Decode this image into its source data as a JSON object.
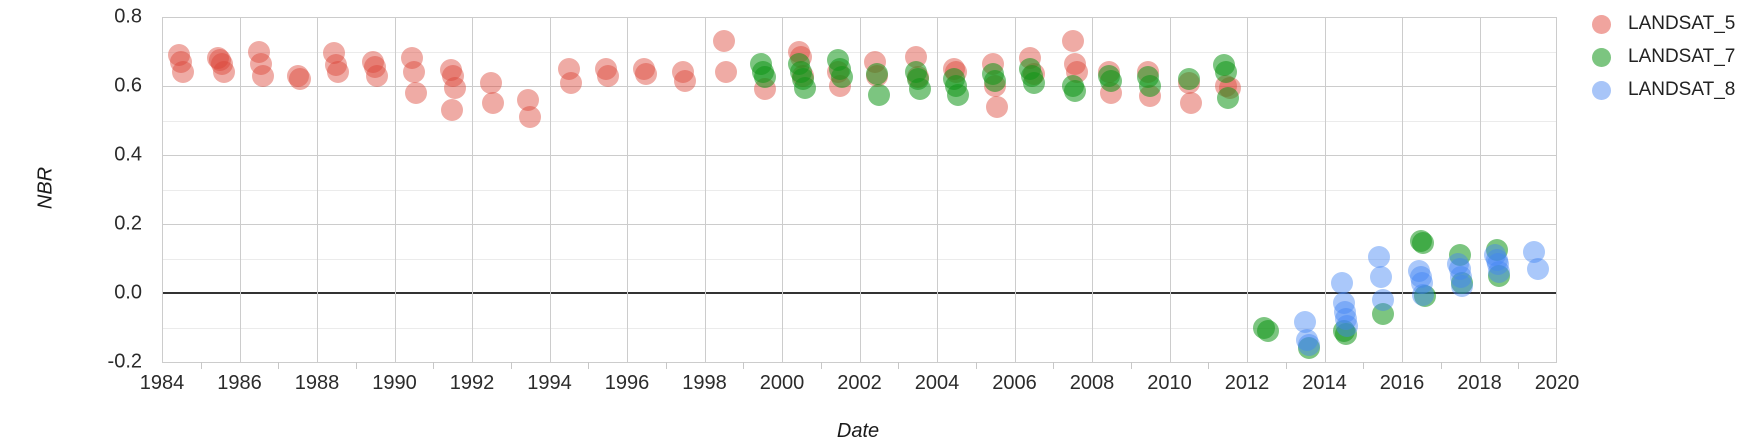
{
  "chart_data": {
    "type": "scatter",
    "title": "",
    "xlabel": "Date",
    "ylabel": "NBR",
    "x_range": [
      1984,
      2020
    ],
    "y_range": [
      -0.2,
      0.8
    ],
    "grid": true,
    "legend_position": "right",
    "x_ticks": [
      {
        "label": "1984",
        "value": 1984
      },
      {
        "label": "1986",
        "value": 1986
      },
      {
        "label": "1988",
        "value": 1988
      },
      {
        "label": "1990",
        "value": 1990
      },
      {
        "label": "1992",
        "value": 1992
      },
      {
        "label": "1994",
        "value": 1994
      },
      {
        "label": "1996",
        "value": 1996
      },
      {
        "label": "1998",
        "value": 1998
      },
      {
        "label": "2000",
        "value": 2000
      },
      {
        "label": "2002",
        "value": 2002
      },
      {
        "label": "2004",
        "value": 2004
      },
      {
        "label": "2006",
        "value": 2006
      },
      {
        "label": "2008",
        "value": 2008
      },
      {
        "label": "2010",
        "value": 2010
      },
      {
        "label": "2012",
        "value": 2012
      },
      {
        "label": "2014",
        "value": 2014
      },
      {
        "label": "2016",
        "value": 2016
      },
      {
        "label": "2018",
        "value": 2018
      },
      {
        "label": "2020",
        "value": 2020
      }
    ],
    "x_minor_ticks": [
      1985,
      1987,
      1989,
      1991,
      1993,
      1995,
      1997,
      1999,
      2001,
      2003,
      2005,
      2007,
      2009,
      2011,
      2013,
      2015,
      2017,
      2019
    ],
    "y_ticks": [
      {
        "label": "0.8",
        "value": 0.8
      },
      {
        "label": "0.6",
        "value": 0.6
      },
      {
        "label": "0.4",
        "value": 0.4
      },
      {
        "label": "0.2",
        "value": 0.2
      },
      {
        "label": "0.0",
        "value": 0.0
      },
      {
        "label": "-0.2",
        "value": -0.2
      }
    ],
    "y_minor_gridlines": [
      0.7,
      0.5,
      0.3,
      0.1,
      -0.1
    ],
    "zero_line_value": 0.0,
    "series": [
      {
        "name": "LANDSAT_5",
        "color": "rgba(219,68,55,0.45)",
        "legend_color": "#f0a49e",
        "points": [
          [
            1984.45,
            0.69
          ],
          [
            1984.5,
            0.67
          ],
          [
            1984.55,
            0.64
          ],
          [
            1985.45,
            0.68
          ],
          [
            1985.5,
            0.675
          ],
          [
            1985.55,
            0.665
          ],
          [
            1985.6,
            0.64
          ],
          [
            1986.5,
            0.7
          ],
          [
            1986.55,
            0.665
          ],
          [
            1986.6,
            0.63
          ],
          [
            1987.5,
            0.63
          ],
          [
            1987.55,
            0.62
          ],
          [
            1988.45,
            0.695
          ],
          [
            1988.5,
            0.66
          ],
          [
            1988.55,
            0.64
          ],
          [
            1989.45,
            0.67
          ],
          [
            1989.5,
            0.655
          ],
          [
            1989.55,
            0.63
          ],
          [
            1990.45,
            0.68
          ],
          [
            1990.5,
            0.64
          ],
          [
            1990.55,
            0.58
          ],
          [
            1991.45,
            0.645
          ],
          [
            1991.48,
            0.53
          ],
          [
            1991.5,
            0.63
          ],
          [
            1991.55,
            0.595
          ],
          [
            1992.5,
            0.61
          ],
          [
            1992.55,
            0.55
          ],
          [
            1993.45,
            0.56
          ],
          [
            1993.5,
            0.51
          ],
          [
            1994.5,
            0.65
          ],
          [
            1994.55,
            0.61
          ],
          [
            1995.45,
            0.65
          ],
          [
            1995.5,
            0.63
          ],
          [
            1996.45,
            0.65
          ],
          [
            1996.5,
            0.635
          ],
          [
            1997.45,
            0.64
          ],
          [
            1997.5,
            0.615
          ],
          [
            1998.5,
            0.73
          ],
          [
            1998.55,
            0.64
          ],
          [
            1999.55,
            0.59
          ],
          [
            2000.45,
            0.7
          ],
          [
            2000.5,
            0.685
          ],
          [
            2000.55,
            0.63
          ],
          [
            2001.45,
            0.64
          ],
          [
            2001.5,
            0.6
          ],
          [
            2002.4,
            0.67
          ],
          [
            2002.45,
            0.63
          ],
          [
            2003.45,
            0.685
          ],
          [
            2003.5,
            0.625
          ],
          [
            2004.45,
            0.65
          ],
          [
            2004.5,
            0.64
          ],
          [
            2005.45,
            0.665
          ],
          [
            2005.5,
            0.6
          ],
          [
            2005.55,
            0.54
          ],
          [
            2006.4,
            0.68
          ],
          [
            2006.5,
            0.635
          ],
          [
            2007.5,
            0.73
          ],
          [
            2007.55,
            0.665
          ],
          [
            2007.6,
            0.64
          ],
          [
            2008.45,
            0.64
          ],
          [
            2008.5,
            0.58
          ],
          [
            2009.45,
            0.64
          ],
          [
            2009.5,
            0.57
          ],
          [
            2010.5,
            0.61
          ],
          [
            2010.55,
            0.55
          ],
          [
            2011.45,
            0.6
          ],
          [
            2011.55,
            0.595
          ]
        ]
      },
      {
        "name": "LANDSAT_7",
        "color": "rgba(16,150,24,0.55)",
        "legend_color": "#7cc580",
        "points": [
          [
            1999.45,
            0.665
          ],
          [
            1999.5,
            0.64
          ],
          [
            1999.55,
            0.625
          ],
          [
            2000.45,
            0.665
          ],
          [
            2000.5,
            0.64
          ],
          [
            2000.55,
            0.62
          ],
          [
            2000.6,
            0.595
          ],
          [
            2001.45,
            0.675
          ],
          [
            2001.5,
            0.65
          ],
          [
            2001.55,
            0.625
          ],
          [
            2002.45,
            0.635
          ],
          [
            2002.5,
            0.575
          ],
          [
            2003.45,
            0.64
          ],
          [
            2003.5,
            0.62
          ],
          [
            2003.55,
            0.59
          ],
          [
            2004.45,
            0.62
          ],
          [
            2004.5,
            0.6
          ],
          [
            2004.55,
            0.575
          ],
          [
            2005.45,
            0.635
          ],
          [
            2005.5,
            0.615
          ],
          [
            2006.4,
            0.65
          ],
          [
            2006.45,
            0.63
          ],
          [
            2006.5,
            0.61
          ],
          [
            2007.5,
            0.6
          ],
          [
            2007.55,
            0.585
          ],
          [
            2008.45,
            0.63
          ],
          [
            2008.5,
            0.615
          ],
          [
            2009.45,
            0.625
          ],
          [
            2009.5,
            0.6
          ],
          [
            2010.5,
            0.62
          ],
          [
            2011.4,
            0.66
          ],
          [
            2011.45,
            0.64
          ],
          [
            2011.5,
            0.565
          ],
          [
            2012.45,
            -0.1
          ],
          [
            2012.55,
            -0.11
          ],
          [
            2013.6,
            -0.16
          ],
          [
            2014.5,
            -0.11
          ],
          [
            2014.55,
            -0.12
          ],
          [
            2015.5,
            -0.06
          ],
          [
            2016.5,
            0.15
          ],
          [
            2016.55,
            0.145
          ],
          [
            2016.6,
            -0.01
          ],
          [
            2017.5,
            0.11
          ],
          [
            2017.55,
            0.03
          ],
          [
            2018.45,
            0.125
          ],
          [
            2018.5,
            0.05
          ]
        ]
      },
      {
        "name": "LANDSAT_8",
        "color": "rgba(66,133,244,0.45)",
        "legend_color": "#a8c5f8",
        "points": [
          [
            2013.5,
            -0.085
          ],
          [
            2013.55,
            -0.135
          ],
          [
            2013.6,
            -0.15
          ],
          [
            2014.45,
            0.03
          ],
          [
            2014.5,
            -0.03
          ],
          [
            2014.52,
            -0.055
          ],
          [
            2014.55,
            -0.075
          ],
          [
            2014.57,
            -0.095
          ],
          [
            2015.4,
            0.105
          ],
          [
            2015.45,
            0.045
          ],
          [
            2015.5,
            -0.02
          ],
          [
            2016.45,
            0.065
          ],
          [
            2016.5,
            0.045
          ],
          [
            2016.52,
            0.03
          ],
          [
            2016.55,
            -0.005
          ],
          [
            2017.45,
            0.085
          ],
          [
            2017.5,
            0.07
          ],
          [
            2017.52,
            0.045
          ],
          [
            2017.55,
            0.02
          ],
          [
            2018.4,
            0.11
          ],
          [
            2018.45,
            0.095
          ],
          [
            2018.47,
            0.085
          ],
          [
            2018.5,
            0.06
          ],
          [
            2019.4,
            0.12
          ],
          [
            2019.5,
            0.07
          ]
        ]
      }
    ]
  }
}
